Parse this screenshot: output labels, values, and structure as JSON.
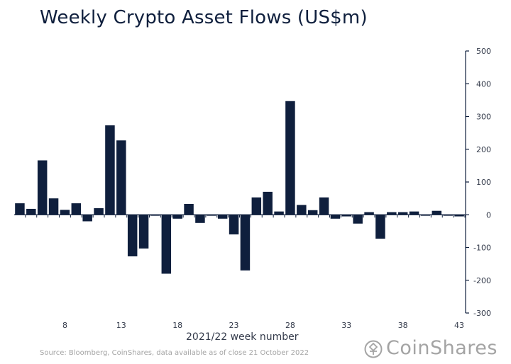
{
  "chart_data": {
    "type": "bar",
    "title": "Weekly Crypto Asset Flows (US$m)",
    "xlabel": "2021/22 week number",
    "ylabel": "",
    "weeks": [
      4,
      5,
      6,
      7,
      8,
      9,
      10,
      11,
      12,
      13,
      14,
      15,
      16,
      17,
      18,
      19,
      20,
      21,
      22,
      23,
      24,
      25,
      26,
      27,
      28,
      29,
      30,
      31,
      32,
      33,
      34,
      35,
      36,
      37,
      38,
      39,
      40,
      41,
      42,
      43
    ],
    "values": [
      35,
      18,
      166,
      50,
      15,
      35,
      -20,
      20,
      273,
      227,
      -127,
      -103,
      -3,
      -180,
      -12,
      33,
      -25,
      -3,
      -12,
      -60,
      -170,
      53,
      70,
      10,
      347,
      30,
      14,
      53,
      -12,
      -5,
      -27,
      8,
      -73,
      8,
      8,
      10,
      -3,
      12,
      -3,
      -5
    ],
    "xticks": [
      8,
      13,
      18,
      23,
      28,
      33,
      38,
      43
    ],
    "yticks": [
      500,
      400,
      300,
      200,
      100,
      0,
      -100,
      -200,
      -300
    ],
    "ylim": [
      -300,
      500
    ],
    "bar_color": "#0f1f3d",
    "source": "Source: Bloomberg, CoinShares, data available as of close 21 October 2022"
  },
  "brand": {
    "name": "CoinShares"
  }
}
